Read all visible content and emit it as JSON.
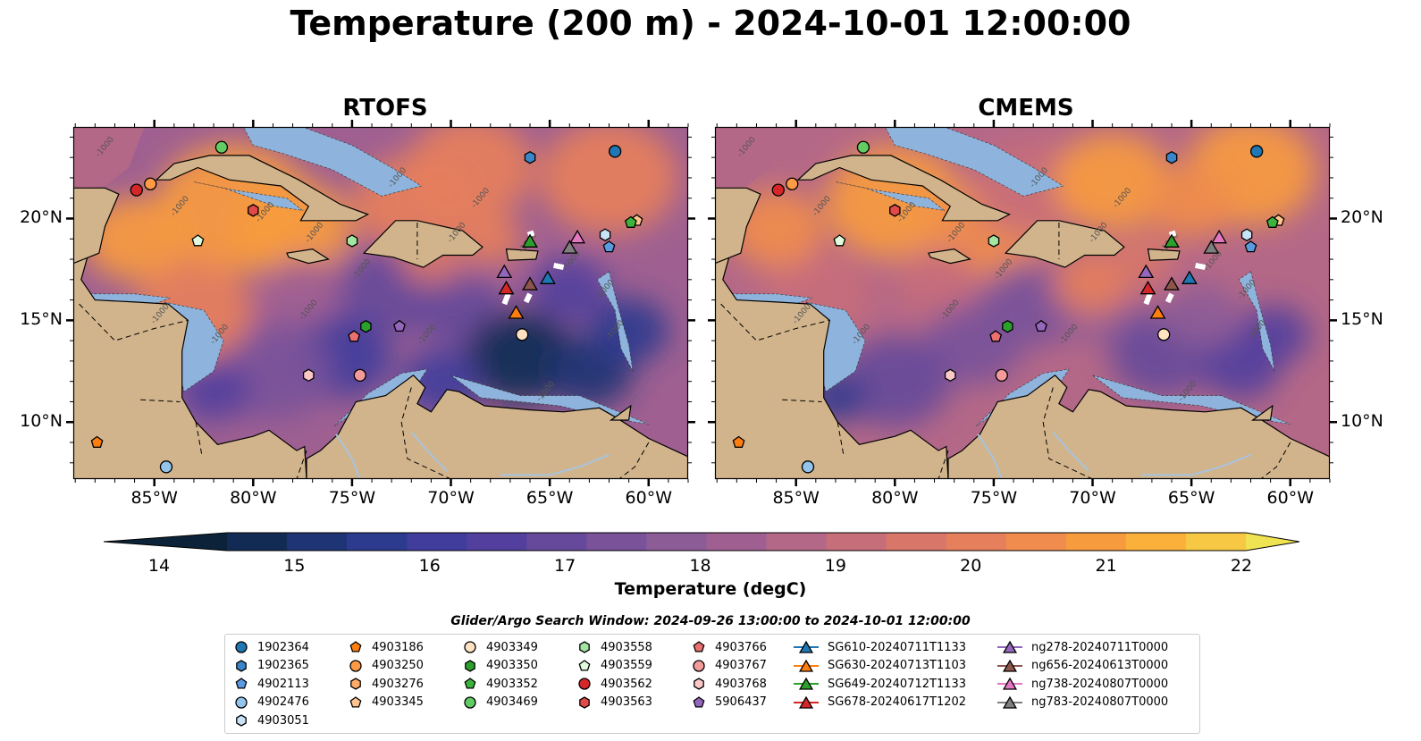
{
  "title": "Temperature (200 m) - 2024-10-01 12:00:00",
  "panels": [
    {
      "title": "RTOFS",
      "id": "rtofs"
    },
    {
      "title": "CMEMS",
      "id": "cmems"
    }
  ],
  "x_ticks": [
    "85°W",
    "80°W",
    "75°W",
    "70°W",
    "65°W",
    "60°W"
  ],
  "x_tick_values": [
    -85,
    -80,
    -75,
    -70,
    -65,
    -60
  ],
  "y_ticks": [
    "20°N",
    "15°N",
    "10°N"
  ],
  "y_tick_values": [
    20,
    15,
    10
  ],
  "extent": {
    "lon": [
      -89.1,
      -58.0
    ],
    "lat": [
      7.2,
      24.5
    ]
  },
  "colorbar": {
    "title": "Temperature (degC)",
    "min": 14,
    "max": 22,
    "step": 0.5,
    "ticks": [
      "14",
      "15",
      "16",
      "17",
      "18",
      "19",
      "20",
      "21",
      "22"
    ],
    "colors": [
      "#0b2239",
      "#122b55",
      "#1f3474",
      "#2d3b8e",
      "#403d9c",
      "#533f9d",
      "#66499a",
      "#79529a",
      "#8c5c97",
      "#9f6091",
      "#b46887",
      "#c76e7b",
      "#d8766a",
      "#e67f5c",
      "#f08c4d",
      "#f79b3f",
      "#fab03b",
      "#f6c844",
      "#f0e352"
    ]
  },
  "contour_label": "-1000",
  "search_window": "Glider/Argo Search Window: 2024-09-26 13:00:00 to 2024-10-01 12:00:00",
  "colors": {
    "land": "#d1b48c",
    "shelf": "#8eb4dd",
    "river": "#a8c3dd"
  },
  "legend": [
    {
      "label": "1902364",
      "marker": "circle",
      "color": "#1f77b4"
    },
    {
      "label": "1902365",
      "marker": "hexagon",
      "color": "#3a86c8"
    },
    {
      "label": "4902113",
      "marker": "pentagon",
      "color": "#5a9be0"
    },
    {
      "label": "4902476",
      "marker": "circle",
      "color": "#92c4ec"
    },
    {
      "label": "4903051",
      "marker": "hexagon",
      "color": "#c8e2f8"
    },
    {
      "label": "4903186",
      "marker": "pentagon",
      "color": "#ff7f0e"
    },
    {
      "label": "4903250",
      "marker": "circle",
      "color": "#ff9a45"
    },
    {
      "label": "4903276",
      "marker": "hexagon",
      "color": "#ffac68"
    },
    {
      "label": "4903345",
      "marker": "pentagon",
      "color": "#ffc48f"
    },
    {
      "label": "4903349",
      "marker": "circle",
      "color": "#ffe2c2"
    },
    {
      "label": "4903350",
      "marker": "hexagon",
      "color": "#2ca02c"
    },
    {
      "label": "4903352",
      "marker": "pentagon",
      "color": "#3cb43c"
    },
    {
      "label": "4903469",
      "marker": "circle",
      "color": "#63cc63"
    },
    {
      "label": "4903558",
      "marker": "hexagon",
      "color": "#a2e6a2"
    },
    {
      "label": "4903559",
      "marker": "pentagon",
      "color": "#e0fadc"
    },
    {
      "label": "4903562",
      "marker": "circle",
      "color": "#d62728"
    },
    {
      "label": "4903563",
      "marker": "hexagon",
      "color": "#e24a4a"
    },
    {
      "label": "4903766",
      "marker": "pentagon",
      "color": "#ec7070"
    },
    {
      "label": "4903767",
      "marker": "circle",
      "color": "#f49a9a"
    },
    {
      "label": "4903768",
      "marker": "hexagon",
      "color": "#fbc8c8"
    },
    {
      "label": "5906437",
      "marker": "pentagon",
      "color": "#9467bd"
    },
    {
      "label": "SG610-20240711T1133",
      "marker": "triangle",
      "color": "#1f77b4",
      "line": true
    },
    {
      "label": "SG630-20240713T1103",
      "marker": "triangle",
      "color": "#ff7f0e",
      "line": true
    },
    {
      "label": "SG649-20240712T1133",
      "marker": "triangle",
      "color": "#2ca02c",
      "line": true
    },
    {
      "label": "SG678-20240617T1202",
      "marker": "triangle",
      "color": "#d62728",
      "line": true
    },
    {
      "label": "ng278-20240711T0000",
      "marker": "triangle",
      "color": "#9467bd",
      "line": true
    },
    {
      "label": "ng656-20240613T0000",
      "marker": "triangle",
      "color": "#8c564b",
      "line": true
    },
    {
      "label": "ng738-20240807T0000",
      "marker": "triangle",
      "color": "#e377c2",
      "line": true
    },
    {
      "label": "ng783-20240807T0000",
      "marker": "triangle",
      "color": "#7f7f7f",
      "line": true
    }
  ],
  "floats": [
    {
      "id": "1902364",
      "lon": -61.7,
      "lat": 23.3
    },
    {
      "id": "1902365",
      "lon": -66.0,
      "lat": 23.0
    },
    {
      "id": "4902113",
      "lon": -62.0,
      "lat": 18.6
    },
    {
      "id": "4902476",
      "lon": -84.4,
      "lat": 7.8
    },
    {
      "id": "4903051",
      "lon": -62.2,
      "lat": 19.2
    },
    {
      "id": "4903186",
      "lon": -87.9,
      "lat": 9.0
    },
    {
      "id": "4903250",
      "lon": -85.2,
      "lat": 21.7
    },
    {
      "id": "4903276",
      "lon": -80.0,
      "lat": 20.4
    },
    {
      "id": "4903345",
      "lon": -60.6,
      "lat": 19.9
    },
    {
      "id": "4903349",
      "lon": -66.4,
      "lat": 14.3
    },
    {
      "id": "4903350",
      "lon": -74.3,
      "lat": 14.7
    },
    {
      "id": "4903352",
      "lon": -60.9,
      "lat": 19.8
    },
    {
      "id": "4903469",
      "lon": -81.6,
      "lat": 23.5
    },
    {
      "id": "4903558",
      "lon": -75.0,
      "lat": 18.9
    },
    {
      "id": "4903559",
      "lon": -82.8,
      "lat": 18.9
    },
    {
      "id": "4903562",
      "lon": -85.9,
      "lat": 21.4
    },
    {
      "id": "4903563",
      "lon": -80.0,
      "lat": 20.4
    },
    {
      "id": "4903766",
      "lon": -74.9,
      "lat": 14.2
    },
    {
      "id": "4903767",
      "lon": -74.6,
      "lat": 12.3
    },
    {
      "id": "4903768",
      "lon": -77.2,
      "lat": 12.3
    },
    {
      "id": "5906437",
      "lon": -72.6,
      "lat": 14.7
    }
  ],
  "gliders": [
    {
      "id": "SG610-20240711T1133",
      "lon": -65.1,
      "lat": 17.1
    },
    {
      "id": "SG630-20240713T1103",
      "lon": -66.7,
      "lat": 15.4
    },
    {
      "id": "SG649-20240712T1133",
      "lon": -66.0,
      "lat": 18.9
    },
    {
      "id": "SG678-20240617T1202",
      "lon": -67.2,
      "lat": 16.6
    },
    {
      "id": "ng278-20240711T0000",
      "lon": -67.3,
      "lat": 17.4
    },
    {
      "id": "ng656-20240613T0000",
      "lon": -66.0,
      "lat": 16.8
    },
    {
      "id": "ng738-20240807T0000",
      "lon": -63.6,
      "lat": 19.1
    },
    {
      "id": "ng783-20240807T0000",
      "lon": -64.0,
      "lat": 18.6
    }
  ]
}
